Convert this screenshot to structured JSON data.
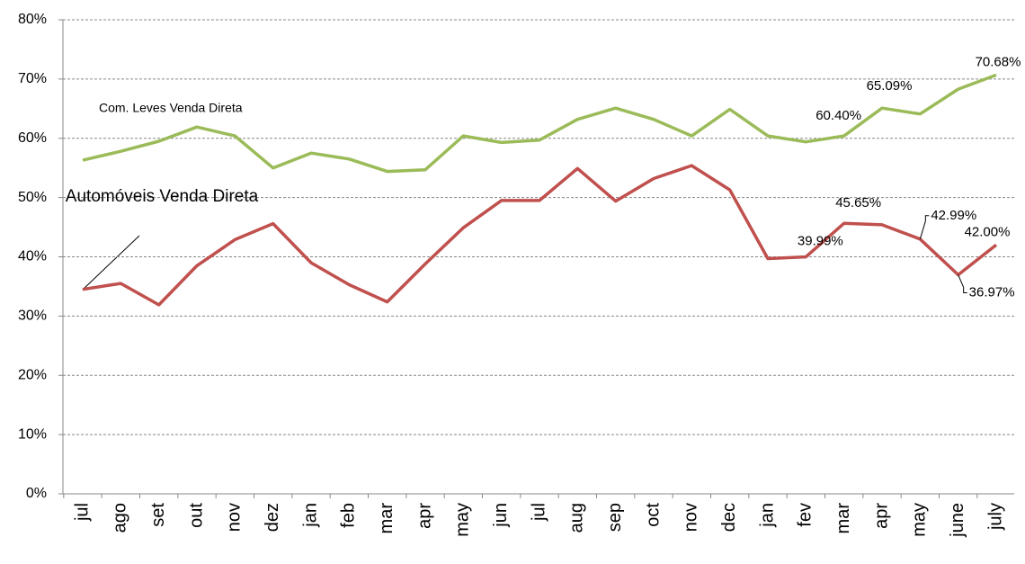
{
  "chart_data": {
    "type": "line",
    "categories": [
      "jul",
      "ago",
      "set",
      "out",
      "nov",
      "dez",
      "jan",
      "feb",
      "mar",
      "apr",
      "may",
      "jun",
      "jul",
      "aug",
      "sep",
      "oct",
      "nov",
      "dec",
      "jan",
      "fev",
      "mar",
      "apr",
      "may",
      "june",
      "july"
    ],
    "series": [
      {
        "name": "Com. Leves Venda Direta",
        "color": "#9bbb59",
        "values": [
          56.3,
          57.8,
          59.5,
          61.9,
          60.4,
          55.0,
          57.5,
          56.5,
          54.4,
          54.7,
          60.4,
          59.3,
          59.7,
          63.2,
          65.1,
          63.2,
          60.4,
          64.9,
          60.4,
          59.4,
          60.4,
          65.09,
          64.1,
          68.3,
          70.68
        ],
        "value_labels": [
          null,
          null,
          null,
          null,
          null,
          null,
          null,
          null,
          null,
          null,
          null,
          null,
          null,
          null,
          null,
          null,
          null,
          null,
          null,
          null,
          "60.40%",
          "65.09%",
          null,
          null,
          "70.68%"
        ]
      },
      {
        "name": "Automóveis Venda Direta",
        "color": "#c0504d",
        "values": [
          34.5,
          35.5,
          31.9,
          38.5,
          42.9,
          45.6,
          39.0,
          35.3,
          32.4,
          38.8,
          44.9,
          49.5,
          49.5,
          54.9,
          49.4,
          53.2,
          55.4,
          51.3,
          39.7,
          39.99,
          45.65,
          45.4,
          42.99,
          36.97,
          42.0
        ],
        "value_labels": [
          null,
          null,
          null,
          null,
          null,
          null,
          null,
          null,
          null,
          null,
          null,
          null,
          null,
          null,
          null,
          null,
          null,
          null,
          null,
          "39.99%",
          "45.65%",
          null,
          "42.99%",
          "36.97%",
          "42.00%"
        ]
      }
    ],
    "ylim": [
      0,
      80
    ],
    "yticks": [
      {
        "value": 0,
        "label": "0%"
      },
      {
        "value": 10,
        "label": "10%"
      },
      {
        "value": 20,
        "label": "20%"
      },
      {
        "value": 30,
        "label": "30%"
      },
      {
        "value": 40,
        "label": "40%"
      },
      {
        "value": 50,
        "label": "50%"
      },
      {
        "value": 60,
        "label": "60%"
      },
      {
        "value": 70,
        "label": "70%"
      },
      {
        "value": 80,
        "label": "80%"
      }
    ],
    "grid": true
  }
}
